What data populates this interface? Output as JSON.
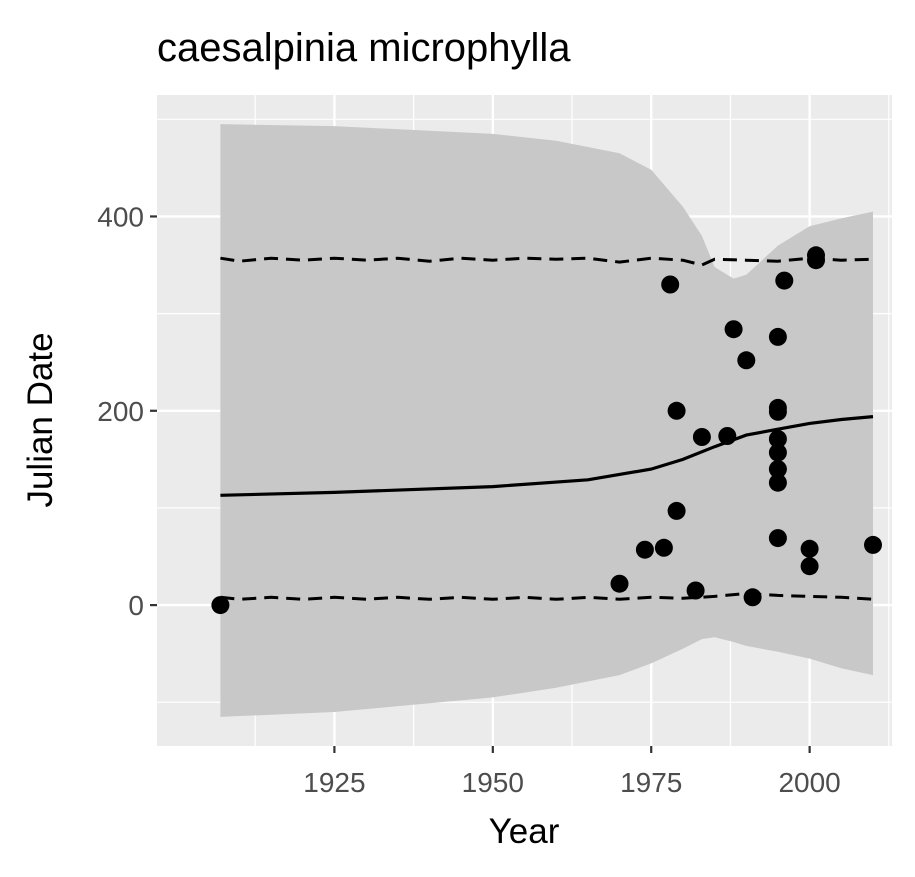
{
  "chart_data": {
    "type": "scatter",
    "title": "caesalpinia microphylla",
    "xlabel": "Year",
    "ylabel": "Julian Date",
    "xlim": [
      1897,
      2013
    ],
    "ylim": [
      -145,
      525
    ],
    "x_ticks": [
      1925,
      1950,
      1975,
      2000
    ],
    "x_tick_labels": [
      "1925",
      "1950",
      "1975",
      "2000"
    ],
    "y_ticks": [
      0,
      200,
      400
    ],
    "y_tick_labels": [
      "0",
      "200",
      "400"
    ],
    "grid": true,
    "legend": "none",
    "colors": {
      "panel": "#ebebeb",
      "grid": "#ffffff",
      "ribbon": "#c8c8c8",
      "points": "#000000",
      "lines": "#000000"
    },
    "points": [
      {
        "x": 1907,
        "y": 0
      },
      {
        "x": 1970,
        "y": 22
      },
      {
        "x": 1974,
        "y": 57
      },
      {
        "x": 1977,
        "y": 59
      },
      {
        "x": 1978,
        "y": 330
      },
      {
        "x": 1979,
        "y": 200
      },
      {
        "x": 1979,
        "y": 97
      },
      {
        "x": 1982,
        "y": 15
      },
      {
        "x": 1983,
        "y": 173
      },
      {
        "x": 1987,
        "y": 174
      },
      {
        "x": 1988,
        "y": 284
      },
      {
        "x": 1990,
        "y": 252
      },
      {
        "x": 1991,
        "y": 8
      },
      {
        "x": 1995,
        "y": 276
      },
      {
        "x": 1995,
        "y": 203
      },
      {
        "x": 1995,
        "y": 199
      },
      {
        "x": 1995,
        "y": 171
      },
      {
        "x": 1995,
        "y": 157
      },
      {
        "x": 1995,
        "y": 140
      },
      {
        "x": 1995,
        "y": 126
      },
      {
        "x": 1995,
        "y": 69
      },
      {
        "x": 1996,
        "y": 334
      },
      {
        "x": 2000,
        "y": 58
      },
      {
        "x": 2000,
        "y": 40
      },
      {
        "x": 2001,
        "y": 360
      },
      {
        "x": 2001,
        "y": 355
      },
      {
        "x": 2010,
        "y": 62
      }
    ],
    "trend_line": {
      "x": [
        1907,
        1925,
        1950,
        1965,
        1975,
        1980,
        1985,
        1990,
        1995,
        2000,
        2005,
        2010
      ],
      "y": [
        113,
        116,
        122,
        129,
        140,
        150,
        163,
        175,
        181,
        187,
        191,
        194
      ]
    },
    "upper_dashed": {
      "x": [
        1907,
        1910,
        1915,
        1920,
        1925,
        1930,
        1935,
        1940,
        1945,
        1950,
        1955,
        1960,
        1965,
        1970,
        1975,
        1980,
        1983,
        1985,
        1990,
        1995,
        2000,
        2005,
        2010
      ],
      "y": [
        357,
        354,
        357,
        355,
        357,
        355,
        357,
        354,
        357,
        355,
        357,
        356,
        357,
        353,
        357,
        355,
        350,
        356,
        355,
        354,
        357,
        355,
        356
      ]
    },
    "lower_dashed": {
      "x": [
        1907,
        1910,
        1915,
        1920,
        1925,
        1930,
        1935,
        1940,
        1945,
        1950,
        1955,
        1960,
        1965,
        1970,
        1975,
        1980,
        1985,
        1990,
        1995,
        2000,
        2005,
        2010
      ],
      "y": [
        8,
        6,
        8,
        6,
        8,
        6,
        8,
        6,
        8,
        6,
        8,
        6,
        8,
        6,
        8,
        7,
        9,
        12,
        10,
        9,
        8,
        6
      ]
    },
    "ribbon": {
      "x": [
        1907,
        1925,
        1950,
        1960,
        1970,
        1975,
        1980,
        1983,
        1985,
        1988,
        1990,
        1995,
        2000,
        2005,
        2010
      ],
      "upper": [
        495,
        493,
        485,
        478,
        465,
        448,
        410,
        380,
        348,
        336,
        340,
        370,
        390,
        398,
        405
      ],
      "lower": [
        -115,
        -110,
        -95,
        -85,
        -72,
        -60,
        -45,
        -35,
        -33,
        -38,
        -42,
        -48,
        -55,
        -65,
        -72
      ]
    }
  }
}
